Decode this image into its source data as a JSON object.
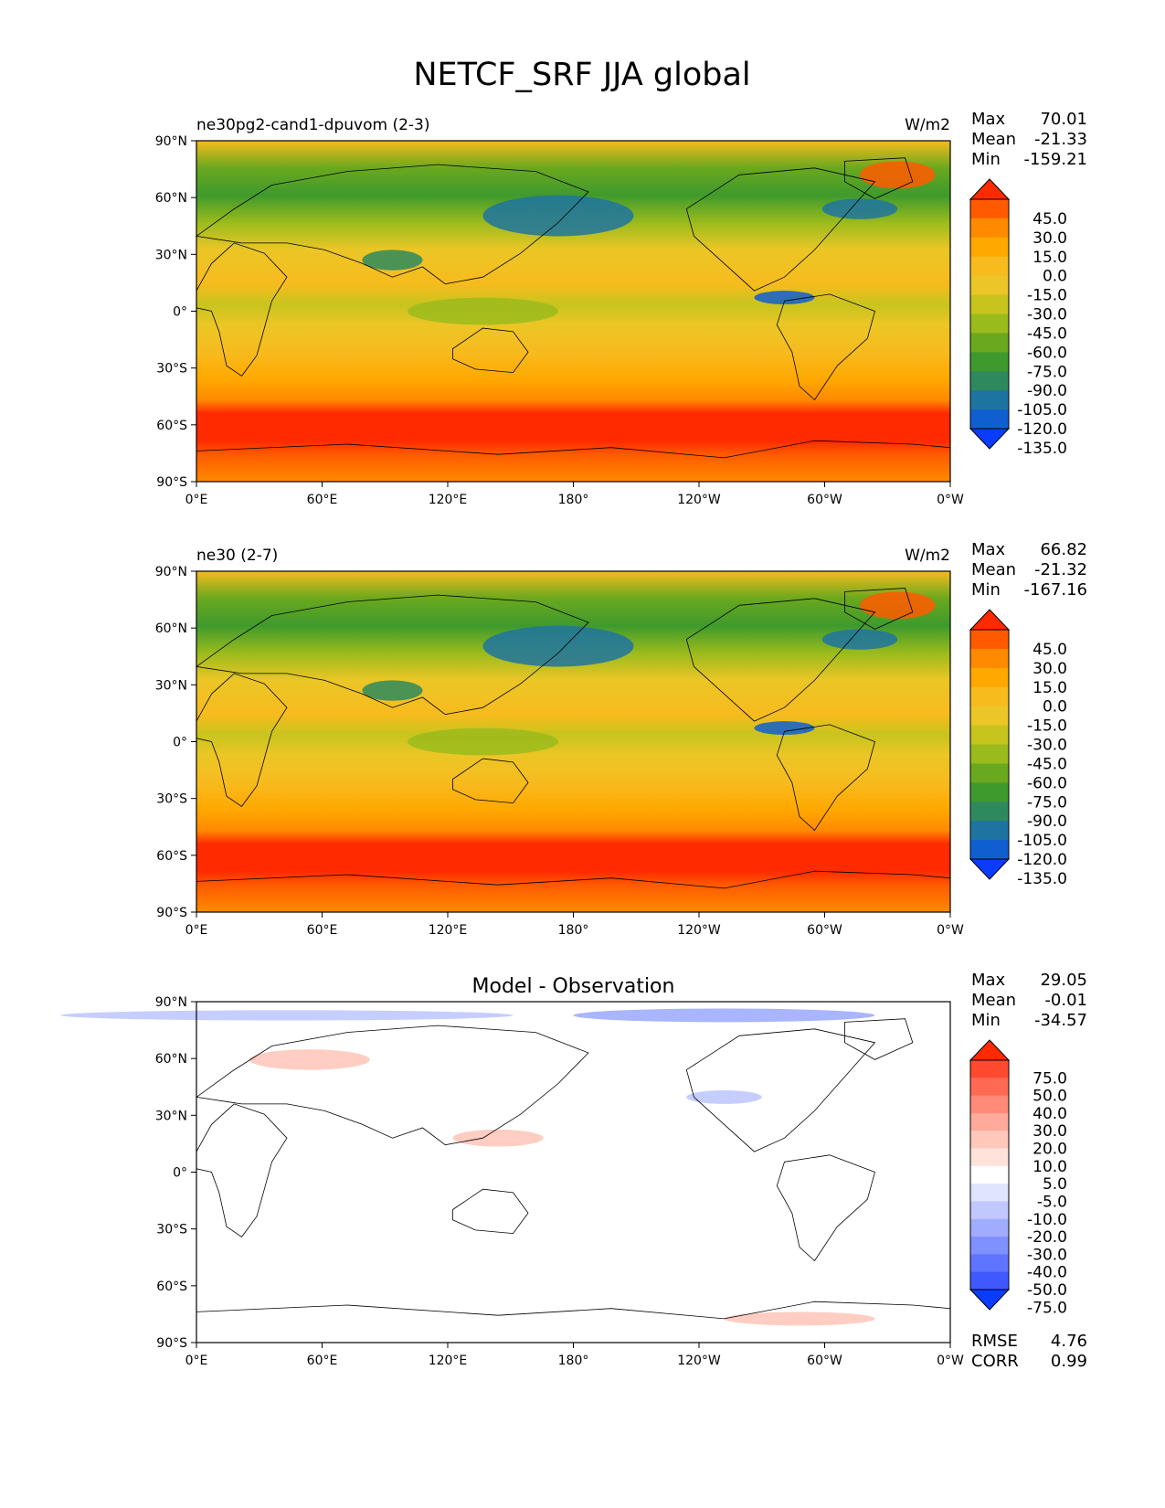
{
  "figure": {
    "title": "NETCF_SRF JJA global"
  },
  "axes": {
    "lat_labels": [
      "90°N",
      "60°N",
      "30°N",
      "0°",
      "30°S",
      "60°S",
      "90°S"
    ],
    "lon_labels": [
      "0°E",
      "60°E",
      "120°E",
      "180°",
      "120°W",
      "60°W",
      "0°W"
    ]
  },
  "panels": [
    {
      "id": "test",
      "left_title": "ne30pg2-cand1-dpuvom (2-3)",
      "center_title": "",
      "units": "W/m2",
      "stats": [
        {
          "label": "Max",
          "value": "70.01"
        },
        {
          "label": "Mean",
          "value": "-21.33"
        },
        {
          "label": "Min",
          "value": "-159.21"
        }
      ],
      "colorbar": {
        "ticks": [
          "45.0",
          "30.0",
          "15.0",
          "0.0",
          "-15.0",
          "-30.0",
          "-45.0",
          "-60.0",
          "-75.0",
          "-90.0",
          "-105.0",
          "-120.0",
          "-135.0"
        ],
        "colors": [
          "#ff2a00",
          "#ff5a00",
          "#ff8a00",
          "#ffa800",
          "#f7bb1e",
          "#ebc626",
          "#c8c41e",
          "#9bbb1c",
          "#6aa81e",
          "#3f9a2d",
          "#2e8a5e",
          "#1e74a0",
          "#0f5fd0",
          "#0a3cff"
        ]
      },
      "extra": []
    },
    {
      "id": "reference",
      "left_title": "ne30 (2-7)",
      "center_title": "",
      "units": "W/m2",
      "stats": [
        {
          "label": "Max",
          "value": "66.82"
        },
        {
          "label": "Mean",
          "value": "-21.32"
        },
        {
          "label": "Min",
          "value": "-167.16"
        }
      ],
      "colorbar": {
        "ticks": [
          "45.0",
          "30.0",
          "15.0",
          "0.0",
          "-15.0",
          "-30.0",
          "-45.0",
          "-60.0",
          "-75.0",
          "-90.0",
          "-105.0",
          "-120.0",
          "-135.0"
        ],
        "colors": [
          "#ff2a00",
          "#ff5a00",
          "#ff8a00",
          "#ffa800",
          "#f7bb1e",
          "#ebc626",
          "#c8c41e",
          "#9bbb1c",
          "#6aa81e",
          "#3f9a2d",
          "#2e8a5e",
          "#1e74a0",
          "#0f5fd0",
          "#0a3cff"
        ]
      },
      "extra": []
    },
    {
      "id": "diff",
      "left_title": "",
      "center_title": "Model - Observation",
      "units": "",
      "stats": [
        {
          "label": "Max",
          "value": "29.05"
        },
        {
          "label": "Mean",
          "value": "-0.01"
        },
        {
          "label": "Min",
          "value": "-34.57"
        }
      ],
      "colorbar": {
        "ticks": [
          "75.0",
          "50.0",
          "40.0",
          "30.0",
          "20.0",
          "10.0",
          "5.0",
          "-5.0",
          "-10.0",
          "-20.0",
          "-30.0",
          "-40.0",
          "-50.0",
          "-75.0"
        ],
        "colors": [
          "#ff2a00",
          "#ff4a30",
          "#ff6a55",
          "#ff8a78",
          "#ffaa9a",
          "#ffc8bb",
          "#ffe3db",
          "#ffffff",
          "#dfe4ff",
          "#c0c8ff",
          "#a0adff",
          "#7f91ff",
          "#5f75ff",
          "#3f59ff",
          "#0a3cff"
        ]
      },
      "extra": [
        {
          "label": "RMSE",
          "value": "4.76"
        },
        {
          "label": "CORR",
          "value": "0.99"
        }
      ]
    }
  ]
}
